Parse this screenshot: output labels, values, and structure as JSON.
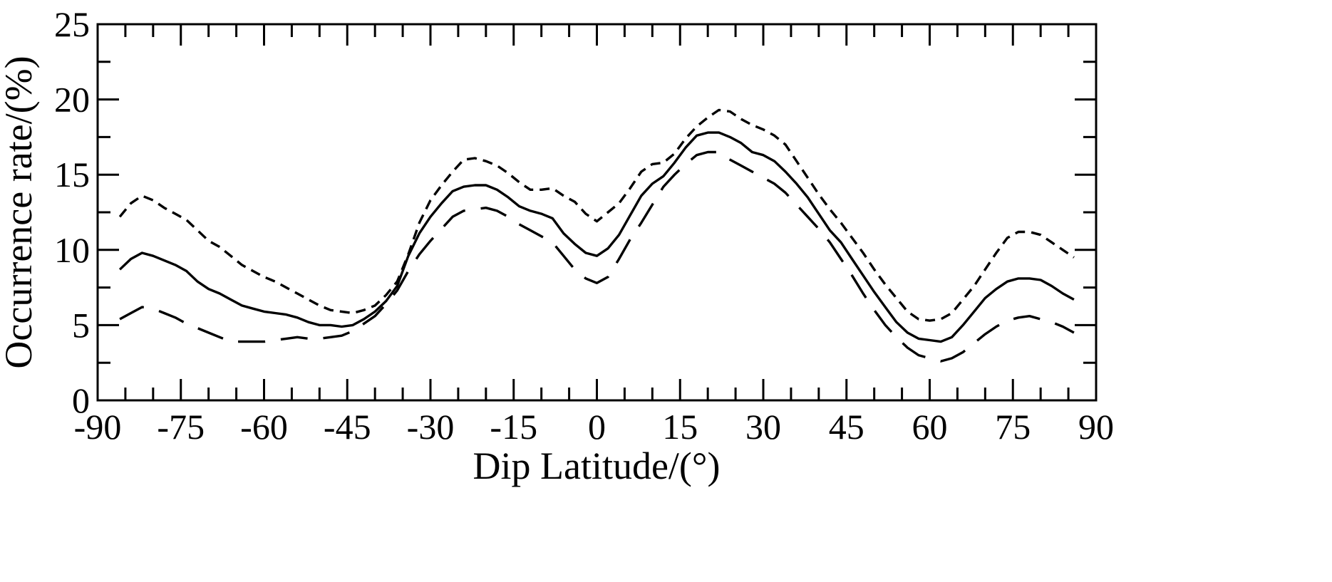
{
  "chart_data": {
    "type": "line",
    "title": "",
    "xlabel": "Dip Latitude/(°)",
    "ylabel": "Occurrence rate/(%)",
    "xlim": [
      -90,
      90
    ],
    "ylim": [
      0,
      25
    ],
    "x_ticks": [
      "-90",
      "-75",
      "-60",
      "-45",
      "-30",
      "-15",
      "0",
      "15",
      "30",
      "45",
      "60",
      "75",
      "90"
    ],
    "y_ticks": [
      "0",
      "5",
      "10",
      "15",
      "20",
      "25"
    ],
    "grid": false,
    "legend": "none",
    "series": [
      {
        "style": "short-dash",
        "x": [
          -86,
          -84,
          -82,
          -80,
          -78,
          -76,
          -74,
          -72,
          -70,
          -68,
          -66,
          -64,
          -62,
          -60,
          -58,
          -56,
          -54,
          -52,
          -50,
          -48,
          -46,
          -44,
          -42,
          -40,
          -38,
          -36,
          -34,
          -32,
          -30,
          -28,
          -26,
          -24,
          -22,
          -20,
          -18,
          -16,
          -14,
          -12,
          -10,
          -8,
          -6,
          -4,
          -2,
          0,
          2,
          4,
          6,
          8,
          10,
          12,
          14,
          16,
          18,
          20,
          22,
          24,
          26,
          28,
          30,
          32,
          34,
          36,
          38,
          40,
          42,
          44,
          46,
          48,
          50,
          52,
          54,
          56,
          58,
          60,
          62,
          64,
          66,
          68,
          70,
          72,
          74,
          76,
          78,
          80,
          82,
          84,
          86
        ],
        "y": [
          12.2,
          13.1,
          13.6,
          13.3,
          12.8,
          12.4,
          12.0,
          11.3,
          10.6,
          10.2,
          9.6,
          9.0,
          8.6,
          8.2,
          7.9,
          7.5,
          7.1,
          6.7,
          6.3,
          6.0,
          5.9,
          5.8,
          6.0,
          6.3,
          7.0,
          7.9,
          9.7,
          11.8,
          13.3,
          14.3,
          15.2,
          16.0,
          16.1,
          15.9,
          15.6,
          15.1,
          14.5,
          14.0,
          14.0,
          14.1,
          13.6,
          13.2,
          12.4,
          11.9,
          12.5,
          13.1,
          14.1,
          15.2,
          15.7,
          15.8,
          16.4,
          17.4,
          18.2,
          18.8,
          19.3,
          19.2,
          18.7,
          18.3,
          18.0,
          17.6,
          17.0,
          15.9,
          14.8,
          13.7,
          12.7,
          11.8,
          10.8,
          9.8,
          8.7,
          7.7,
          6.8,
          5.9,
          5.4,
          5.3,
          5.4,
          5.8,
          6.7,
          7.6,
          8.7,
          9.8,
          10.8,
          11.2,
          11.2,
          11.0,
          10.5,
          10.0,
          9.5
        ]
      },
      {
        "style": "solid",
        "x": [
          -86,
          -84,
          -82,
          -80,
          -78,
          -76,
          -74,
          -72,
          -70,
          -68,
          -66,
          -64,
          -62,
          -60,
          -58,
          -56,
          -54,
          -52,
          -50,
          -48,
          -46,
          -44,
          -42,
          -40,
          -38,
          -36,
          -34,
          -32,
          -30,
          -28,
          -26,
          -24,
          -22,
          -20,
          -18,
          -16,
          -14,
          -12,
          -10,
          -8,
          -6,
          -4,
          -2,
          0,
          2,
          4,
          6,
          8,
          10,
          12,
          14,
          16,
          18,
          20,
          22,
          24,
          26,
          28,
          30,
          32,
          34,
          36,
          38,
          40,
          42,
          44,
          46,
          48,
          50,
          52,
          54,
          56,
          58,
          60,
          62,
          64,
          66,
          68,
          70,
          72,
          74,
          76,
          78,
          80,
          82,
          84,
          86
        ],
        "y": [
          8.7,
          9.4,
          9.8,
          9.6,
          9.3,
          9.0,
          8.6,
          7.9,
          7.4,
          7.1,
          6.7,
          6.3,
          6.1,
          5.9,
          5.8,
          5.7,
          5.5,
          5.2,
          5.0,
          5.0,
          4.9,
          5.0,
          5.4,
          5.9,
          6.6,
          7.6,
          9.6,
          11.1,
          12.2,
          13.1,
          13.9,
          14.2,
          14.3,
          14.3,
          14.0,
          13.5,
          12.9,
          12.6,
          12.4,
          12.1,
          11.1,
          10.4,
          9.8,
          9.6,
          10.1,
          11.0,
          12.3,
          13.6,
          14.4,
          14.9,
          15.8,
          16.8,
          17.6,
          17.8,
          17.8,
          17.5,
          17.1,
          16.5,
          16.3,
          15.9,
          15.2,
          14.4,
          13.5,
          12.4,
          11.3,
          10.5,
          9.4,
          8.3,
          7.2,
          6.2,
          5.2,
          4.5,
          4.1,
          4.0,
          3.9,
          4.2,
          5.0,
          5.9,
          6.8,
          7.4,
          7.9,
          8.1,
          8.1,
          8.0,
          7.6,
          7.1,
          6.7
        ]
      },
      {
        "style": "long-dash",
        "x": [
          -86,
          -84,
          -82,
          -80,
          -78,
          -76,
          -74,
          -72,
          -70,
          -68,
          -66,
          -64,
          -62,
          -60,
          -58,
          -56,
          -54,
          -52,
          -50,
          -48,
          -46,
          -44,
          -42,
          -40,
          -38,
          -36,
          -34,
          -32,
          -30,
          -28,
          -26,
          -24,
          -22,
          -20,
          -18,
          -16,
          -14,
          -12,
          -10,
          -8,
          -6,
          -4,
          -2,
          0,
          2,
          4,
          6,
          8,
          10,
          12,
          14,
          16,
          18,
          20,
          22,
          24,
          26,
          28,
          30,
          32,
          34,
          36,
          38,
          40,
          42,
          44,
          46,
          48,
          50,
          52,
          54,
          56,
          58,
          60,
          62,
          64,
          66,
          68,
          70,
          72,
          74,
          76,
          78,
          80,
          82,
          84,
          86
        ],
        "y": [
          5.4,
          5.8,
          6.2,
          6.1,
          5.8,
          5.5,
          5.1,
          4.8,
          4.5,
          4.2,
          3.9,
          3.9,
          3.9,
          3.9,
          4.0,
          4.1,
          4.2,
          4.1,
          4.1,
          4.2,
          4.3,
          4.6,
          5.1,
          5.6,
          6.4,
          7.3,
          8.6,
          9.7,
          10.6,
          11.4,
          12.2,
          12.6,
          12.7,
          12.8,
          12.6,
          12.2,
          11.7,
          11.3,
          10.9,
          10.5,
          9.6,
          8.7,
          8.1,
          7.8,
          8.2,
          9.4,
          10.7,
          11.8,
          13.0,
          14.2,
          15.0,
          15.7,
          16.3,
          16.5,
          16.5,
          16.0,
          15.6,
          15.2,
          14.8,
          14.4,
          13.8,
          13.0,
          12.2,
          11.4,
          10.5,
          9.4,
          8.3,
          7.1,
          6.0,
          5.0,
          4.2,
          3.5,
          3.0,
          2.8,
          2.6,
          2.8,
          3.2,
          3.8,
          4.4,
          4.9,
          5.3,
          5.5,
          5.6,
          5.4,
          5.2,
          4.9,
          4.5
        ]
      }
    ]
  }
}
